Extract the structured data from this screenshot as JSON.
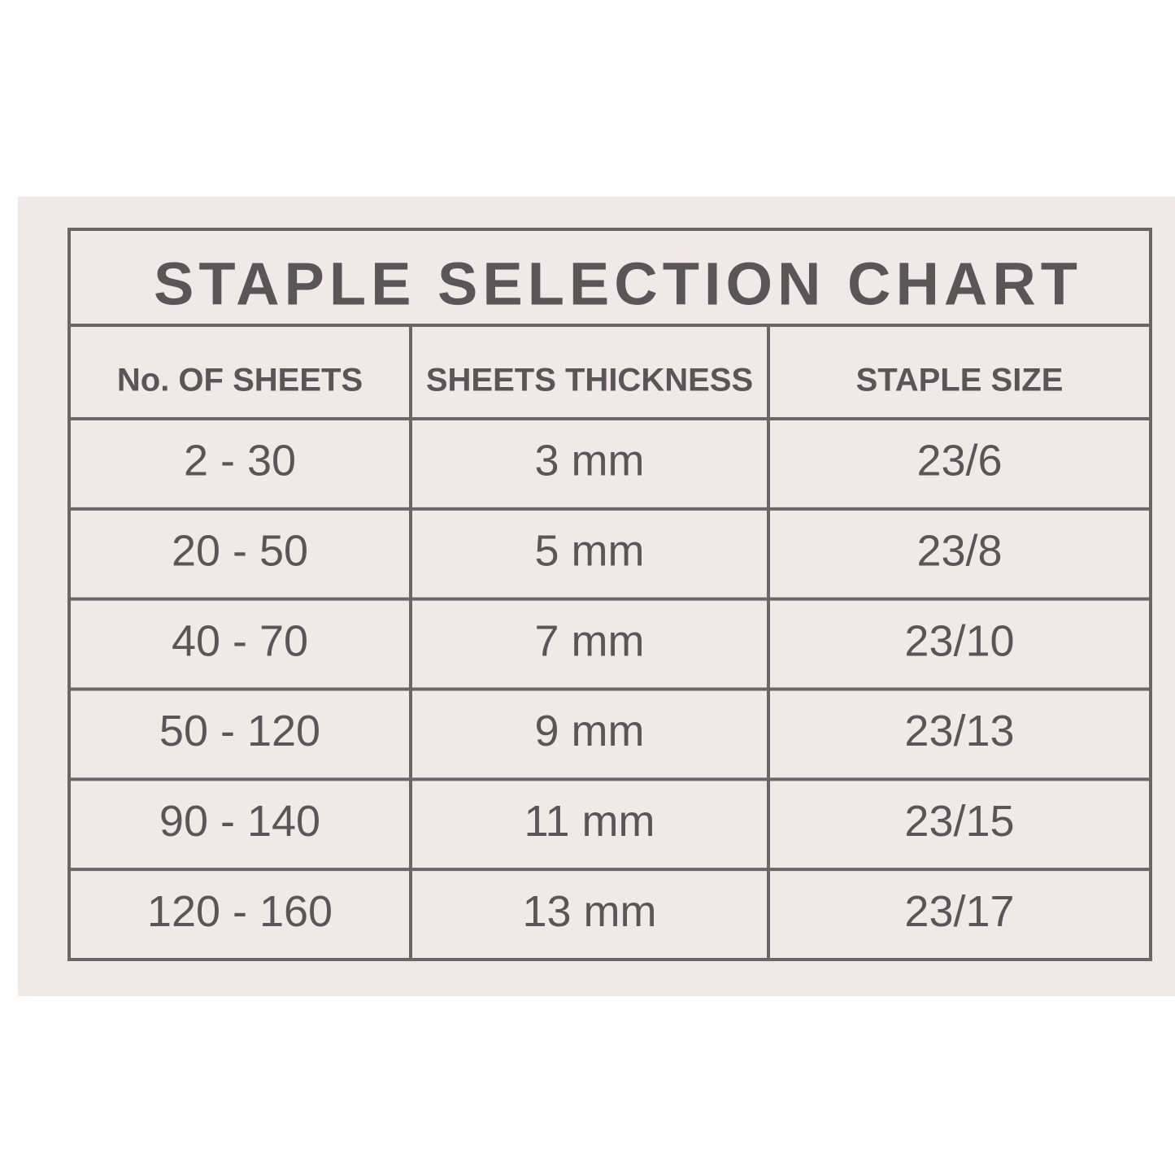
{
  "table": {
    "title": "STAPLE SELECTION CHART",
    "headers": [
      "No. OF SHEETS",
      "SHEETS THICKNESS",
      "STAPLE SIZE"
    ],
    "rows": [
      [
        "2 - 30",
        "3 mm",
        "23/6"
      ],
      [
        "20 - 50",
        "5 mm",
        "23/8"
      ],
      [
        "40 - 70",
        "7 mm",
        "23/10"
      ],
      [
        "50 - 120",
        "9 mm",
        "23/13"
      ],
      [
        "90 - 140",
        "11 mm",
        "23/15"
      ],
      [
        "120 - 160",
        "13 mm",
        "23/17"
      ]
    ]
  }
}
